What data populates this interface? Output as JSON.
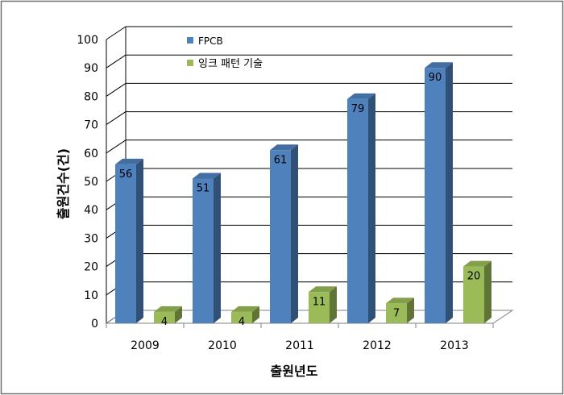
{
  "chart_data": {
    "type": "bar",
    "title": "",
    "xlabel": "출원년도",
    "ylabel": "출원건수(건)",
    "categories": [
      "2009",
      "2010",
      "2011",
      "2012",
      "2013"
    ],
    "ylim": [
      0,
      100
    ],
    "yticks": [
      "0",
      "10",
      "20",
      "30",
      "40",
      "50",
      "60",
      "70",
      "80",
      "90",
      "100"
    ],
    "series": [
      {
        "name": "FPCB",
        "values": [
          56,
          51,
          61,
          79,
          90
        ],
        "color": "#4F81BD"
      },
      {
        "name": "잉크 패턴 기술",
        "values": [
          4,
          4,
          11,
          7,
          20
        ],
        "color": "#9BBB59"
      }
    ],
    "grid": true,
    "legend": "top-center",
    "style": "3d-column"
  }
}
